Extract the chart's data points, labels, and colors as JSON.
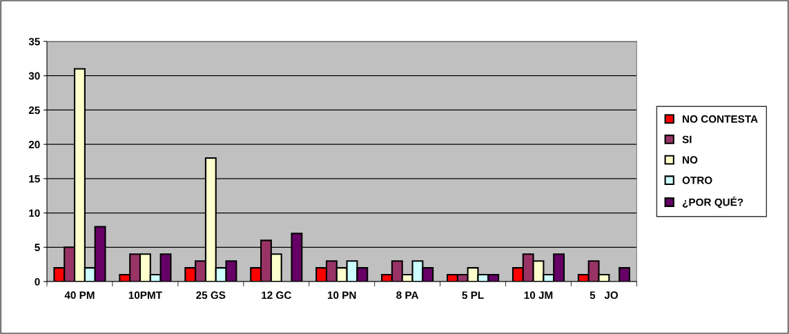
{
  "chart_data": {
    "type": "bar",
    "categories": [
      "40 PM",
      "10PMT",
      "25 GS",
      "12 GC",
      "10 PN",
      "8 PA",
      "5 PL",
      "10 JM",
      "5   JO"
    ],
    "series": [
      {
        "name": "NO CONTESTA",
        "color": "#ff0000",
        "values": [
          2,
          1,
          2,
          2,
          2,
          1,
          1,
          2,
          1
        ]
      },
      {
        "name": "SI",
        "color": "#993366",
        "values": [
          5,
          4,
          3,
          6,
          3,
          3,
          1,
          4,
          3
        ]
      },
      {
        "name": "NO",
        "color": "#ffffcc",
        "values": [
          31,
          4,
          18,
          4,
          2,
          1,
          2,
          3,
          1
        ]
      },
      {
        "name": "OTRO",
        "color": "#ccffff",
        "values": [
          2,
          1,
          2,
          null,
          3,
          3,
          1,
          1,
          null
        ]
      },
      {
        "name": "¿POR QUÉ?",
        "color": "#660066",
        "values": [
          8,
          4,
          3,
          7,
          2,
          2,
          1,
          4,
          2
        ]
      }
    ],
    "ylim": [
      0,
      35
    ],
    "yticks": [
      0,
      5,
      10,
      15,
      20,
      25,
      30,
      35
    ],
    "grid": "y",
    "legend": "right"
  }
}
